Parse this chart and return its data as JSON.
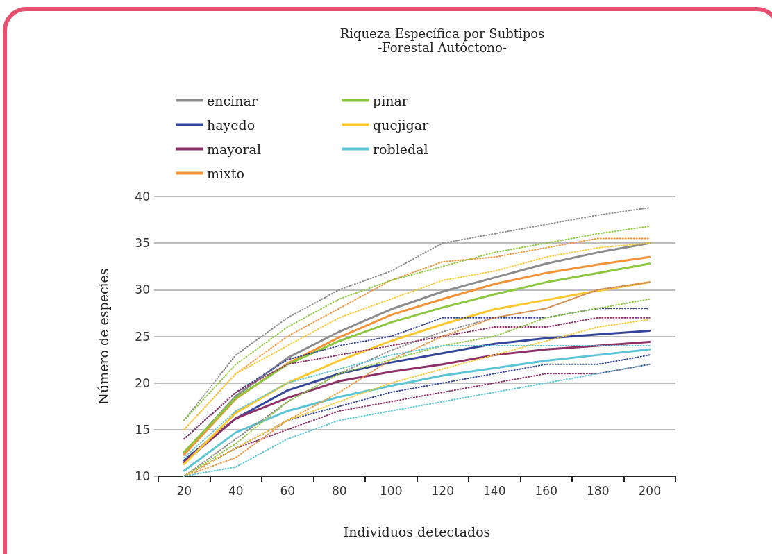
{
  "chart_data": {
    "type": "line",
    "title": "Riqueza Específica por Subtipos",
    "subtitle": "-Forestal Autóctono-",
    "xlabel": "Individuos detectados",
    "ylabel": "Número de especies",
    "categories": [
      "20",
      "40",
      "60",
      "80",
      "100",
      "120",
      "140",
      "160",
      "180",
      "200"
    ],
    "ylim": [
      10,
      40
    ],
    "yticks": [
      10,
      15,
      20,
      25,
      30,
      35,
      40
    ],
    "grid": "y",
    "legend": "top left",
    "line_style": "solid",
    "marker": "none",
    "series": [
      {
        "name": "encinar",
        "color": "#8c8c8e",
        "values": [
          12.5,
          18.6,
          22.7,
          25.5,
          27.9,
          29.8,
          31.3,
          32.8,
          34.0,
          35.0
        ]
      },
      {
        "name": "hayedo",
        "color": "#34469a",
        "values": [
          11.7,
          16.2,
          19.2,
          21.0,
          22.2,
          23.2,
          24.2,
          24.8,
          25.2,
          25.6
        ]
      },
      {
        "name": "mayoral",
        "color": "#8e3168",
        "values": [
          11.5,
          16.2,
          18.4,
          20.2,
          21.2,
          22.0,
          23.0,
          23.6,
          24.0,
          24.4
        ]
      },
      {
        "name": "mixto",
        "color": "#f39237",
        "values": [
          12.3,
          18.3,
          22.1,
          24.9,
          27.3,
          29.0,
          30.6,
          31.8,
          32.7,
          33.5
        ]
      },
      {
        "name": "pinar",
        "color": "#8dc63f",
        "values": [
          12.6,
          18.4,
          22.0,
          24.5,
          26.5,
          28.1,
          29.5,
          30.8,
          31.8,
          32.8
        ]
      },
      {
        "name": "quejigar",
        "color": "#fdc82f",
        "values": [
          11.3,
          16.8,
          20.0,
          22.4,
          24.5,
          26.3,
          27.9,
          28.9,
          29.9,
          30.8
        ]
      },
      {
        "name": "robledal",
        "color": "#5bc5d6",
        "values": [
          10.6,
          14.7,
          17.0,
          18.5,
          19.7,
          20.8,
          21.6,
          22.4,
          23.0,
          23.6
        ]
      },
      {
        "color": "#8c8c8e",
        "line_style": "dotted",
        "values": [
          10,
          14,
          18,
          21,
          23.5,
          25.5,
          27,
          28,
          30,
          30.8
        ]
      },
      {
        "color": "#8c8c8e",
        "line_style": "dotted",
        "values": [
          16,
          23,
          27,
          30,
          32,
          35,
          36,
          37,
          38,
          38.8
        ]
      },
      {
        "color": "#34469a",
        "line_style": "dotted",
        "values": [
          10,
          13,
          16,
          17.5,
          19,
          20,
          21,
          22,
          22,
          23
        ]
      },
      {
        "color": "#34469a",
        "line_style": "dotted",
        "values": [
          14,
          19,
          22.5,
          24,
          25,
          27,
          27,
          27,
          28,
          28
        ]
      },
      {
        "color": "#8e3168",
        "line_style": "dotted",
        "values": [
          10,
          13,
          15,
          17,
          18,
          19,
          20,
          21,
          21,
          22
        ]
      },
      {
        "color": "#8e3168",
        "line_style": "dotted",
        "values": [
          14,
          19,
          22,
          23,
          24,
          25,
          26,
          26,
          27,
          27
        ]
      },
      {
        "color": "#f39237",
        "line_style": "dotted",
        "values": [
          10,
          12,
          16,
          19,
          22.5,
          25,
          27,
          28,
          30,
          30.8
        ]
      },
      {
        "color": "#f39237",
        "line_style": "dotted",
        "values": [
          15,
          21,
          25,
          28,
          31,
          33,
          33.5,
          34.5,
          35.5,
          35.5
        ]
      },
      {
        "color": "#8dc63f",
        "line_style": "dotted",
        "values": [
          10,
          13.5,
          18,
          21,
          22.5,
          24,
          25,
          27,
          28,
          29
        ]
      },
      {
        "color": "#8dc63f",
        "line_style": "dotted",
        "values": [
          16,
          22,
          26,
          29,
          31,
          32.5,
          34,
          35,
          36,
          36.8
        ]
      },
      {
        "color": "#fdc82f",
        "line_style": "dotted",
        "values": [
          10,
          13,
          16,
          18,
          20,
          21.5,
          23,
          24.5,
          26,
          26.8
        ]
      },
      {
        "color": "#fdc82f",
        "line_style": "dotted",
        "values": [
          15,
          21,
          24,
          27,
          29,
          31,
          32,
          33.5,
          34.5,
          35
        ]
      },
      {
        "color": "#5bc5d6",
        "line_style": "dotted",
        "values": [
          10,
          11,
          14,
          16,
          17,
          18,
          19,
          20,
          21,
          22
        ]
      },
      {
        "color": "#5bc5d6",
        "line_style": "dotted",
        "values": [
          12,
          17,
          20,
          21.5,
          23,
          24,
          24,
          24,
          24,
          24
        ]
      }
    ]
  }
}
